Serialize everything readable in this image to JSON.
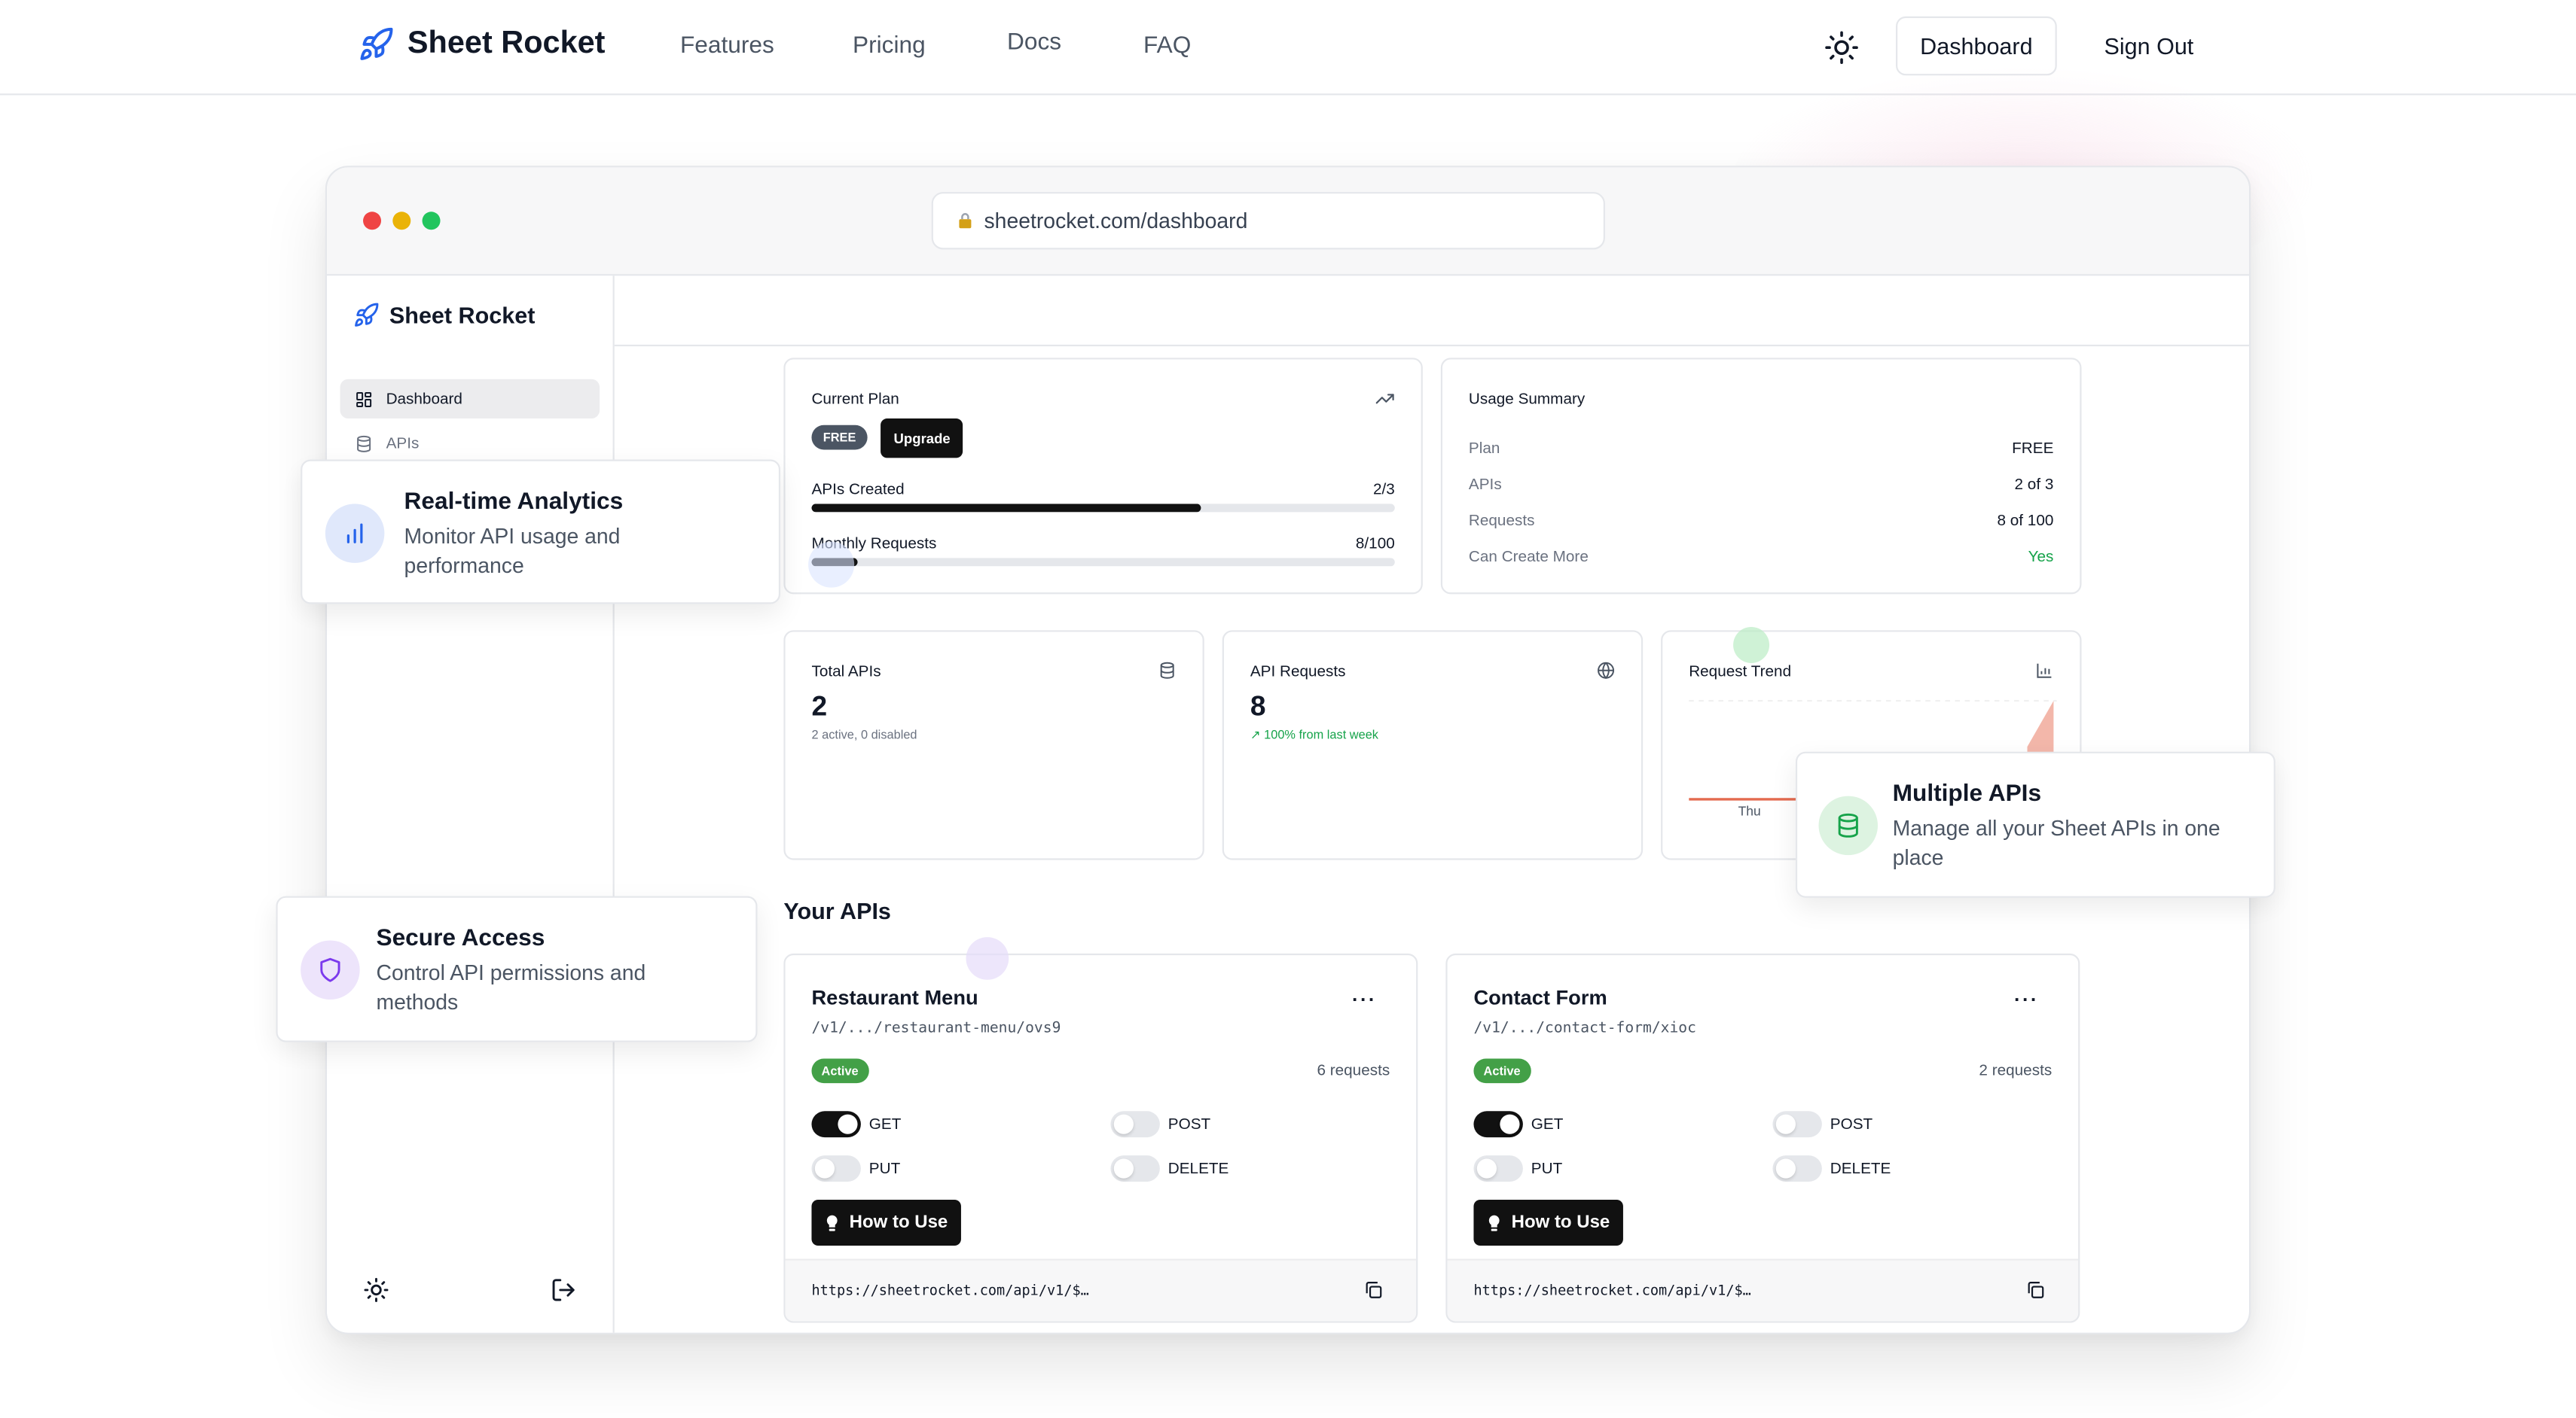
{
  "topnav": {
    "brand": "Sheet Rocket",
    "links": [
      "Features",
      "Pricing",
      "Docs",
      "FAQ"
    ],
    "dashboard_label": "Dashboard",
    "signout_label": "Sign Out"
  },
  "browser": {
    "url": "sheetrocket.com/dashboard"
  },
  "sidebar": {
    "brand": "Sheet Rocket",
    "items": [
      {
        "label": "Dashboard",
        "active": true
      },
      {
        "label": "APIs",
        "active": false
      }
    ]
  },
  "current_plan": {
    "title": "Current Plan",
    "plan_badge": "FREE",
    "upgrade_label": "Upgrade",
    "apis_created_label": "APIs Created",
    "apis_created_value": "2/3",
    "apis_created_fraction": 0.6667,
    "monthly_requests_label": "Monthly Requests",
    "monthly_requests_value": "8/100",
    "monthly_requests_fraction": 0.08
  },
  "usage_summary": {
    "title": "Usage Summary",
    "rows": [
      {
        "label": "Plan",
        "value": "FREE"
      },
      {
        "label": "APIs",
        "value": "2 of 3"
      },
      {
        "label": "Requests",
        "value": "8 of 100"
      },
      {
        "label": "Can Create More",
        "value": "Yes"
      }
    ]
  },
  "stats": {
    "total_apis": {
      "title": "Total APIs",
      "value": "2",
      "sub": "2 active, 0 disabled"
    },
    "api_requests": {
      "title": "API Requests",
      "value": "8",
      "sub": "100% from last week"
    },
    "request_trend": {
      "title": "Request Trend",
      "tick_label": "Thu"
    }
  },
  "your_apis": {
    "title": "Your APIs",
    "items": [
      {
        "name": "Restaurant Menu",
        "path": "/v1/.../restaurant-menu/ovs9",
        "status": "Active",
        "requests": "6 requests",
        "methods": {
          "GET": true,
          "POST": false,
          "PUT": false,
          "DELETE": false
        },
        "how_to_label": "How to Use",
        "endpoint": "https://sheetrocket.com/api/v1/$…"
      },
      {
        "name": "Contact Form",
        "path": "/v1/.../contact-form/xioc",
        "status": "Active",
        "requests": "2 requests",
        "methods": {
          "GET": true,
          "POST": false,
          "PUT": false,
          "DELETE": false
        },
        "how_to_label": "How to Use",
        "endpoint": "https://sheetrocket.com/api/v1/$…"
      }
    ],
    "method_labels": [
      "GET",
      "POST",
      "PUT",
      "DELETE"
    ]
  },
  "features": [
    {
      "title": "Real-time Analytics",
      "desc_line1": "Monitor API usage and",
      "desc_line2": "performance"
    },
    {
      "title": "Multiple APIs",
      "desc_line1": "Manage all your Sheet APIs in one",
      "desc_line2": "place"
    },
    {
      "title": "Secure Access",
      "desc_line1": "Control API permissions and",
      "desc_line2": "methods"
    }
  ],
  "colors": {
    "accent_blue": "#2563eb",
    "active_green": "#43a047",
    "positive_green": "#16a34a",
    "trend_line": "#e46a4f"
  }
}
